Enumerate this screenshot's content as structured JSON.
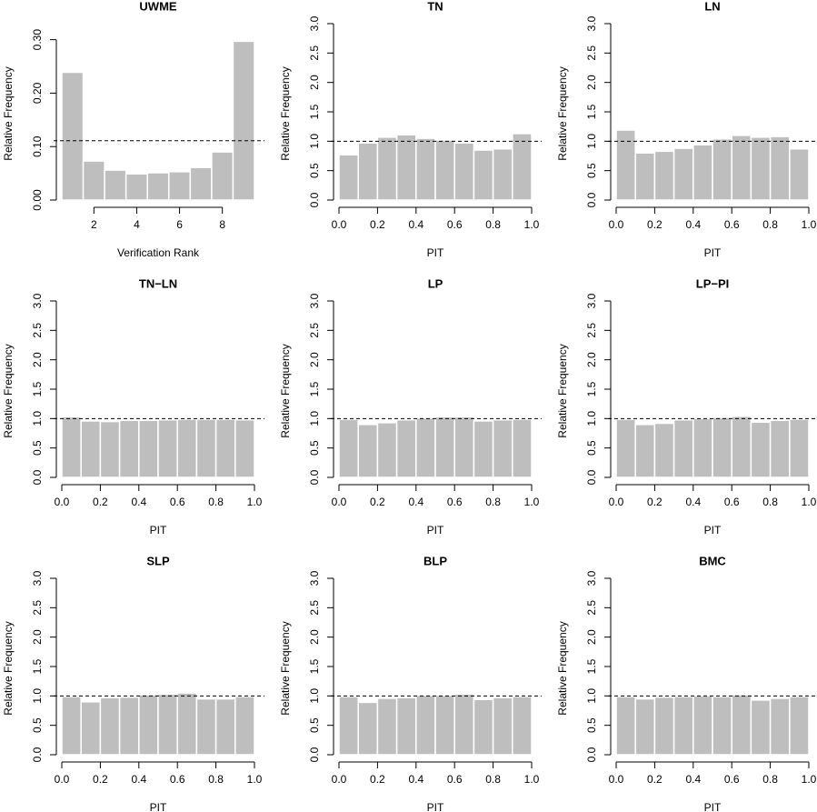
{
  "chart_data": [
    {
      "type": "histogram",
      "title": "UWME",
      "xlabel": "Verification Rank",
      "ylabel": "Relative Frequency",
      "bins": [
        0.5,
        1.5,
        2.5,
        3.5,
        4.5,
        5.5,
        6.5,
        7.5,
        8.5,
        9.5
      ],
      "values": [
        0.239,
        0.073,
        0.056,
        0.049,
        0.051,
        0.053,
        0.061,
        0.09,
        0.297
      ],
      "color": "#bebebe",
      "hline": 0.111,
      "xlim": [
        0.5,
        9.5
      ],
      "xticks": [
        2,
        4,
        6,
        8
      ],
      "ylim": [
        0,
        0.33
      ],
      "yticks": [
        {
          "value": 0,
          "label": "0.00"
        },
        {
          "value": 0.1,
          "label": "0.10"
        },
        {
          "value": 0.2,
          "label": "0.20"
        },
        {
          "value": 0.3,
          "label": "0.30"
        }
      ]
    },
    {
      "type": "histogram",
      "title": "TN",
      "xlabel": "PIT",
      "ylabel": "Relative Frequency",
      "bins": [
        0,
        0.1,
        0.2,
        0.3,
        0.4,
        0.5,
        0.6,
        0.7,
        0.8,
        0.9,
        1
      ],
      "values": [
        0.77,
        0.97,
        1.07,
        1.11,
        1.05,
        1.02,
        0.97,
        0.85,
        0.87,
        1.13
      ],
      "color": "#bebebe",
      "hline": 1,
      "xlim": [
        0,
        1
      ],
      "xticks": [
        {
          "value": 0,
          "label": "0.0"
        },
        0.2,
        0.4,
        0.6,
        0.8,
        {
          "value": 1,
          "label": "1.0"
        }
      ],
      "ylim": [
        0,
        3
      ],
      "yticks": [
        {
          "value": 0,
          "label": "0.0"
        },
        0.5,
        {
          "value": 1,
          "label": "1.0"
        },
        1.5,
        {
          "value": 2,
          "label": "2.0"
        },
        2.5,
        {
          "value": 3,
          "label": "3.0"
        }
      ]
    },
    {
      "type": "histogram",
      "title": "LN",
      "xlabel": "PIT",
      "ylabel": "Relative Frequency",
      "bins": [
        0,
        0.1,
        0.2,
        0.3,
        0.4,
        0.5,
        0.6,
        0.7,
        0.8,
        0.9,
        1
      ],
      "values": [
        1.19,
        0.8,
        0.83,
        0.88,
        0.94,
        1.04,
        1.1,
        1.07,
        1.08,
        0.87
      ],
      "color": "#bebebe",
      "hline": 1,
      "xlim": [
        0,
        1
      ],
      "xticks": [
        {
          "value": 0,
          "label": "0.0"
        },
        0.2,
        0.4,
        0.6,
        0.8,
        {
          "value": 1,
          "label": "1.0"
        }
      ],
      "ylim": [
        0,
        3
      ],
      "yticks": [
        {
          "value": 0,
          "label": "0.0"
        },
        0.5,
        {
          "value": 1,
          "label": "1.0"
        },
        1.5,
        {
          "value": 2,
          "label": "2.0"
        },
        2.5,
        {
          "value": 3,
          "label": "3.0"
        }
      ]
    },
    {
      "type": "histogram",
      "title": "TN−LN",
      "xlabel": "PIT",
      "ylabel": "Relative Frequency",
      "bins": [
        0,
        0.1,
        0.2,
        0.3,
        0.4,
        0.5,
        0.6,
        0.7,
        0.8,
        0.9,
        1
      ],
      "values": [
        1.03,
        0.96,
        0.95,
        0.97,
        0.97,
        0.98,
        0.99,
        0.99,
        0.99,
        0.98
      ],
      "color": "#bebebe",
      "hline": 1,
      "xlim": [
        0,
        1
      ],
      "xticks": [
        {
          "value": 0,
          "label": "0.0"
        },
        0.2,
        0.4,
        0.6,
        0.8,
        {
          "value": 1,
          "label": "1.0"
        }
      ],
      "ylim": [
        0,
        3
      ],
      "yticks": [
        {
          "value": 0,
          "label": "0.0"
        },
        0.5,
        {
          "value": 1,
          "label": "1.0"
        },
        1.5,
        {
          "value": 2,
          "label": "2.0"
        },
        2.5,
        {
          "value": 3,
          "label": "3.0"
        }
      ]
    },
    {
      "type": "histogram",
      "title": "LP",
      "xlabel": "PIT",
      "ylabel": "Relative Frequency",
      "bins": [
        0,
        0.1,
        0.2,
        0.3,
        0.4,
        0.5,
        0.6,
        0.7,
        0.8,
        0.9,
        1
      ],
      "values": [
        0.99,
        0.9,
        0.93,
        0.98,
        1.01,
        1.03,
        1.03,
        0.96,
        0.98,
        0.99
      ],
      "color": "#bebebe",
      "hline": 1,
      "xlim": [
        0,
        1
      ],
      "xticks": [
        {
          "value": 0,
          "label": "0.0"
        },
        0.2,
        0.4,
        0.6,
        0.8,
        {
          "value": 1,
          "label": "1.0"
        }
      ],
      "ylim": [
        0,
        3
      ],
      "yticks": [
        {
          "value": 0,
          "label": "0.0"
        },
        0.5,
        {
          "value": 1,
          "label": "1.0"
        },
        1.5,
        {
          "value": 2,
          "label": "2.0"
        },
        2.5,
        {
          "value": 3,
          "label": "3.0"
        }
      ]
    },
    {
      "type": "histogram",
      "title": "LP−PI",
      "xlabel": "PIT",
      "ylabel": "Relative Frequency",
      "bins": [
        0,
        0.1,
        0.2,
        0.3,
        0.4,
        0.5,
        0.6,
        0.7,
        0.8,
        0.9,
        1
      ],
      "values": [
        0.99,
        0.9,
        0.92,
        0.98,
        1.0,
        1.02,
        1.04,
        0.94,
        0.97,
        0.99
      ],
      "color": "#bebebe",
      "hline": 1,
      "xlim": [
        0,
        1
      ],
      "xticks": [
        {
          "value": 0,
          "label": "0.0"
        },
        0.2,
        0.4,
        0.6,
        0.8,
        {
          "value": 1,
          "label": "1.0"
        }
      ],
      "ylim": [
        0,
        3
      ],
      "yticks": [
        {
          "value": 0,
          "label": "0.0"
        },
        0.5,
        {
          "value": 1,
          "label": "1.0"
        },
        1.5,
        {
          "value": 2,
          "label": "2.0"
        },
        2.5,
        {
          "value": 3,
          "label": "3.0"
        }
      ]
    },
    {
      "type": "histogram",
      "title": "SLP",
      "xlabel": "PIT",
      "ylabel": "Relative Frequency",
      "bins": [
        0,
        0.1,
        0.2,
        0.3,
        0.4,
        0.5,
        0.6,
        0.7,
        0.8,
        0.9,
        1
      ],
      "values": [
        0.99,
        0.9,
        0.97,
        0.98,
        1.02,
        1.03,
        1.05,
        0.95,
        0.95,
        0.99
      ],
      "color": "#bebebe",
      "hline": 1,
      "xlim": [
        0,
        1
      ],
      "xticks": [
        {
          "value": 0,
          "label": "0.0"
        },
        0.2,
        0.4,
        0.6,
        0.8,
        {
          "value": 1,
          "label": "1.0"
        }
      ],
      "ylim": [
        0,
        3
      ],
      "yticks": [
        {
          "value": 0,
          "label": "0.0"
        },
        0.5,
        {
          "value": 1,
          "label": "1.0"
        },
        1.5,
        {
          "value": 2,
          "label": "2.0"
        },
        2.5,
        {
          "value": 3,
          "label": "3.0"
        }
      ]
    },
    {
      "type": "histogram",
      "title": "BLP",
      "xlabel": "PIT",
      "ylabel": "Relative Frequency",
      "bins": [
        0,
        0.1,
        0.2,
        0.3,
        0.4,
        0.5,
        0.6,
        0.7,
        0.8,
        0.9,
        1
      ],
      "values": [
        0.99,
        0.89,
        0.96,
        0.97,
        1.01,
        1.01,
        1.03,
        0.94,
        0.97,
        0.99
      ],
      "color": "#bebebe",
      "hline": 1,
      "xlim": [
        0,
        1
      ],
      "xticks": [
        {
          "value": 0,
          "label": "0.0"
        },
        0.2,
        0.4,
        0.6,
        0.8,
        {
          "value": 1,
          "label": "1.0"
        }
      ],
      "ylim": [
        0,
        3
      ],
      "yticks": [
        {
          "value": 0,
          "label": "0.0"
        },
        0.5,
        {
          "value": 1,
          "label": "1.0"
        },
        1.5,
        {
          "value": 2,
          "label": "2.0"
        },
        2.5,
        {
          "value": 3,
          "label": "3.0"
        }
      ]
    },
    {
      "type": "histogram",
      "title": "BMC",
      "xlabel": "PIT",
      "ylabel": "Relative Frequency",
      "bins": [
        0,
        0.1,
        0.2,
        0.3,
        0.4,
        0.5,
        0.6,
        0.7,
        0.8,
        0.9,
        1
      ],
      "values": [
        0.99,
        0.95,
        0.98,
        0.99,
        1.0,
        0.99,
        1.02,
        0.93,
        0.96,
        0.99
      ],
      "color": "#bebebe",
      "hline": 1,
      "xlim": [
        0,
        1
      ],
      "xticks": [
        {
          "value": 0,
          "label": "0.0"
        },
        0.2,
        0.4,
        0.6,
        0.8,
        {
          "value": 1,
          "label": "1.0"
        }
      ],
      "ylim": [
        0,
        3
      ],
      "yticks": [
        {
          "value": 0,
          "label": "0.0"
        },
        0.5,
        {
          "value": 1,
          "label": "1.0"
        },
        1.5,
        {
          "value": 2,
          "label": "2.0"
        },
        2.5,
        {
          "value": 3,
          "label": "3.0"
        }
      ]
    }
  ]
}
